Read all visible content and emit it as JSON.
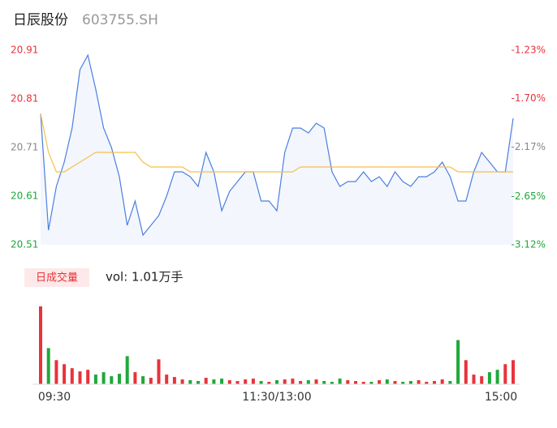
{
  "chart_data": {
    "type": "intraday",
    "title": "日辰股份",
    "subtitle": "603755.SH",
    "volume_label": "日成交量",
    "volume_text": "vol: 1.01万手",
    "xlim": [
      0,
      240
    ],
    "xticks": [
      {
        "value": 0,
        "label": "09:30"
      },
      {
        "value": 120,
        "label": "11:30/13:00"
      },
      {
        "value": 240,
        "label": "15:00"
      }
    ],
    "ylim": [
      20.51,
      20.91
    ],
    "yticks": [
      20.51,
      20.61,
      20.71,
      20.81,
      20.91
    ],
    "y2lim": [
      -3.12,
      -1.23
    ],
    "y2ticks": [
      {
        "value": -3.12,
        "label": "-3.12%"
      },
      {
        "value": -2.65,
        "label": "-2.65%"
      },
      {
        "value": -2.17,
        "label": "-2.17%"
      },
      {
        "value": -1.7,
        "label": "-1.70%"
      },
      {
        "value": -1.23,
        "label": "-1.23%"
      }
    ],
    "x": [
      0,
      4,
      8,
      12,
      16,
      20,
      24,
      28,
      32,
      36,
      40,
      44,
      48,
      52,
      56,
      60,
      64,
      68,
      72,
      76,
      80,
      84,
      88,
      92,
      96,
      100,
      104,
      108,
      112,
      116,
      120,
      124,
      128,
      132,
      136,
      140,
      144,
      148,
      152,
      156,
      160,
      164,
      168,
      172,
      176,
      180,
      184,
      188,
      192,
      196,
      200,
      204,
      208,
      212,
      216,
      220,
      224,
      228,
      232,
      236,
      240
    ],
    "series": [
      {
        "name": "price",
        "color": "#4a7fe0",
        "values": [
          20.78,
          20.54,
          20.63,
          20.68,
          20.75,
          20.87,
          20.9,
          20.83,
          20.75,
          20.71,
          20.65,
          20.55,
          20.6,
          20.53,
          20.55,
          20.57,
          20.61,
          20.66,
          20.66,
          20.65,
          20.63,
          20.7,
          20.66,
          20.58,
          20.62,
          20.64,
          20.66,
          20.66,
          20.6,
          20.6,
          20.58,
          20.7,
          20.75,
          20.75,
          20.74,
          20.76,
          20.75,
          20.66,
          20.63,
          20.64,
          20.64,
          20.66,
          20.64,
          20.65,
          20.63,
          20.66,
          20.64,
          20.63,
          20.65,
          20.65,
          20.66,
          20.68,
          20.65,
          20.6,
          20.6,
          20.66,
          20.7,
          20.68,
          20.66,
          20.66,
          20.77
        ]
      },
      {
        "name": "average",
        "color": "#f5c04a",
        "values": [
          20.78,
          20.7,
          20.66,
          20.66,
          20.67,
          20.68,
          20.69,
          20.7,
          20.7,
          20.7,
          20.7,
          20.7,
          20.7,
          20.68,
          20.67,
          20.67,
          20.67,
          20.67,
          20.67,
          20.66,
          20.66,
          20.66,
          20.66,
          20.66,
          20.66,
          20.66,
          20.66,
          20.66,
          20.66,
          20.66,
          20.66,
          20.66,
          20.66,
          20.67,
          20.67,
          20.67,
          20.67,
          20.67,
          20.67,
          20.67,
          20.67,
          20.67,
          20.67,
          20.67,
          20.67,
          20.67,
          20.67,
          20.67,
          20.67,
          20.67,
          20.67,
          20.67,
          20.67,
          20.66,
          20.66,
          20.66,
          20.66,
          20.66,
          20.66,
          20.66,
          20.66
        ]
      }
    ],
    "volume": {
      "ylim": [
        0,
        1000
      ],
      "up_color": "#e8333a",
      "down_color": "#1fa83a",
      "values": [
        970,
        450,
        300,
        250,
        200,
        160,
        180,
        120,
        150,
        100,
        130,
        350,
        150,
        100,
        80,
        310,
        120,
        90,
        60,
        50,
        40,
        80,
        60,
        70,
        50,
        40,
        60,
        70,
        40,
        30,
        50,
        60,
        70,
        40,
        50,
        60,
        40,
        30,
        70,
        50,
        40,
        30,
        30,
        50,
        60,
        40,
        30,
        40,
        50,
        30,
        40,
        60,
        40,
        550,
        300,
        120,
        100,
        150,
        180,
        250,
        300
      ]
    }
  }
}
